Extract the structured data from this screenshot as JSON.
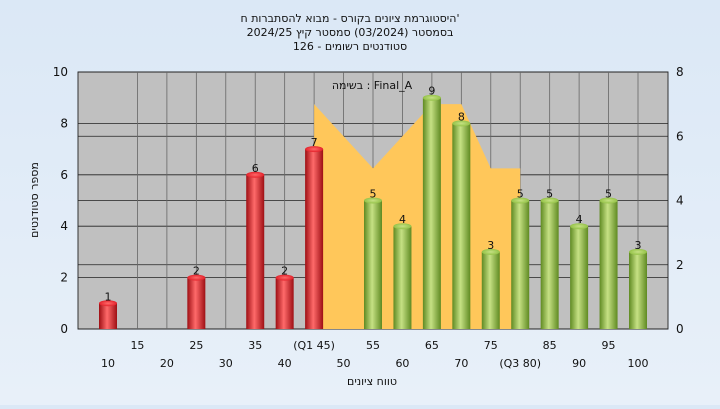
{
  "chart_data": {
    "type": "bar",
    "title_lines": [
      "היסטוגרמת ציונים בקורס - מבוא להסתברות ח'",
      "בסמסטר  (03/2024)  סמסטר קיץ  2024/25",
      "סטודנטים רשומים - 126"
    ],
    "ylabel": "מספר סטודנטים",
    "xlabel": "טווח ציונים",
    "annotation": "בשימה : Final_A",
    "ylim": [
      0,
      10
    ],
    "y2lim": [
      0,
      8
    ],
    "yticks": [
      0,
      2,
      4,
      6,
      8,
      10
    ],
    "y2ticks": [
      0,
      2,
      4,
      6,
      8
    ],
    "grid": true,
    "x_tick_labels_top": [
      "15",
      "25",
      "35",
      "(Q1 45)",
      "55",
      "65",
      "75",
      "85",
      "95"
    ],
    "x_tick_labels_bottom": [
      "10",
      "20",
      "30",
      "40",
      "50",
      "60",
      "70",
      "(Q3 80)",
      "90",
      "100"
    ],
    "bars": [
      {
        "x": 10,
        "value": 1,
        "color": "red"
      },
      {
        "x": 25,
        "value": 2,
        "color": "red"
      },
      {
        "x": 35,
        "value": 6,
        "color": "red"
      },
      {
        "x": 40,
        "value": 2,
        "color": "red"
      },
      {
        "x": 45,
        "value": 7,
        "color": "red"
      },
      {
        "x": 55,
        "value": 5,
        "color": "green"
      },
      {
        "x": 60,
        "value": 4,
        "color": "green"
      },
      {
        "x": 65,
        "value": 9,
        "color": "green"
      },
      {
        "x": 70,
        "value": 8,
        "color": "green"
      },
      {
        "x": 75,
        "value": 3,
        "color": "green"
      },
      {
        "x": 80,
        "value": 5,
        "color": "green"
      },
      {
        "x": 85,
        "value": 5,
        "color": "green"
      },
      {
        "x": 90,
        "value": 4,
        "color": "green"
      },
      {
        "x": 95,
        "value": 5,
        "color": "green"
      },
      {
        "x": 100,
        "value": 3,
        "color": "green"
      }
    ],
    "area": [
      {
        "x": 45,
        "y": 0
      },
      {
        "x": 45,
        "y": 7
      },
      {
        "x": 55,
        "y": 5
      },
      {
        "x": 65,
        "y": 7
      },
      {
        "x": 70,
        "y": 7
      },
      {
        "x": 75,
        "y": 5
      },
      {
        "x": 80,
        "y": 5
      },
      {
        "x": 80,
        "y": 0
      }
    ],
    "colors": {
      "plot_bg": "#c0c0c0",
      "red_light": "#ff6a6a",
      "red": "#e3222b",
      "red_dark": "#9e0f14",
      "green_light": "#c6e184",
      "green": "#94c248",
      "green_dark": "#5f8a22",
      "area": "#ffc75a"
    }
  }
}
